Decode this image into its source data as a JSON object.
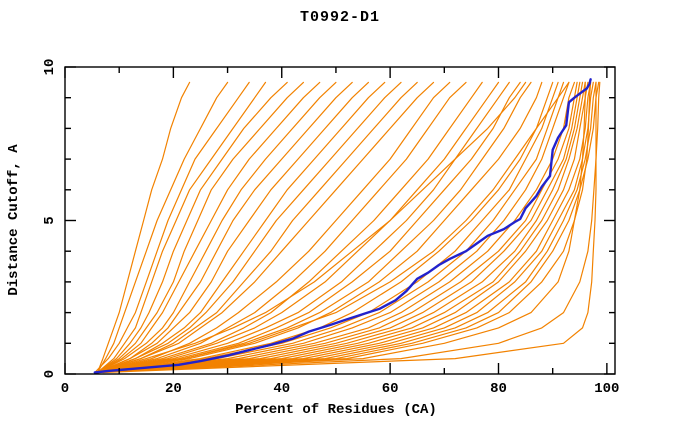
{
  "chart_data": {
    "type": "line",
    "title": "T0992-D1",
    "xlabel": "Percent of Residues (CA)",
    "ylabel": "Distance Cutoff, A",
    "xlim": [
      0,
      101.5
    ],
    "ylim": [
      0,
      10
    ],
    "grid": false,
    "legend": "none",
    "x_major_ticks": [
      0,
      20,
      40,
      60,
      80,
      100
    ],
    "x_major_tick_labels": [
      "0",
      "20",
      "40",
      "60",
      "80",
      "100"
    ],
    "x_minor_ticks": [
      10,
      30,
      50,
      70,
      90
    ],
    "y_major_ticks": [
      0,
      5,
      10
    ],
    "y_major_tick_labels": [
      "0",
      "5",
      "10"
    ],
    "y_minor_ticks": [
      1,
      2,
      3,
      4,
      6,
      7,
      8,
      9
    ],
    "colors": {
      "model": "#f28200",
      "highlight": "#2222cc",
      "axis": "#000000",
      "background": "#ffffff"
    },
    "cutoff_levels": [
      0.05,
      0.5,
      1,
      1.5,
      2,
      3,
      4,
      5,
      6,
      7,
      8,
      9,
      9.5
    ],
    "series": [
      {
        "name": "highlighted-model",
        "role": "highlight",
        "color": "#2222cc",
        "width": 2.4,
        "points": [
          [
            5.5,
            0.05
          ],
          [
            8,
            0.1
          ],
          [
            12,
            0.16
          ],
          [
            16,
            0.22
          ],
          [
            21,
            0.3
          ],
          [
            25,
            0.42
          ],
          [
            30,
            0.6
          ],
          [
            34,
            0.78
          ],
          [
            38,
            0.95
          ],
          [
            42,
            1.15
          ],
          [
            45,
            1.38
          ],
          [
            49,
            1.6
          ],
          [
            52,
            1.78
          ],
          [
            55,
            1.95
          ],
          [
            58,
            2.12
          ],
          [
            61,
            2.4
          ],
          [
            63,
            2.7
          ],
          [
            65,
            3.1
          ],
          [
            67,
            3.3
          ],
          [
            69,
            3.55
          ],
          [
            71,
            3.75
          ],
          [
            74,
            4.0
          ],
          [
            76,
            4.25
          ],
          [
            78,
            4.5
          ],
          [
            81,
            4.72
          ],
          [
            83,
            4.95
          ],
          [
            84,
            5.05
          ],
          [
            85,
            5.4
          ],
          [
            87,
            5.8
          ],
          [
            88,
            6.1
          ],
          [
            89.5,
            6.45
          ],
          [
            90,
            7.3
          ],
          [
            91,
            7.7
          ],
          [
            92.5,
            8.1
          ],
          [
            93,
            8.85
          ],
          [
            94,
            9.0
          ],
          [
            95.5,
            9.2
          ],
          [
            96.3,
            9.3
          ],
          [
            96.8,
            9.45
          ],
          [
            97,
            9.6
          ]
        ]
      },
      {
        "name": "model-01",
        "role": "model",
        "color": "#f28200",
        "width": 1.2,
        "percent_at_cutoff": [
          6,
          7,
          8,
          9,
          10,
          11.5,
          13,
          14.5,
          16,
          18,
          19.5,
          21.5,
          23
        ]
      },
      {
        "name": "model-02",
        "role": "model",
        "color": "#f28200",
        "width": 1.2,
        "percent_at_cutoff": [
          6,
          7.5,
          9,
          10,
          11,
          13,
          15,
          17,
          19.5,
          22,
          25,
          28,
          30
        ]
      },
      {
        "name": "model-03",
        "role": "model",
        "color": "#f28200",
        "width": 1.2,
        "percent_at_cutoff": [
          5.5,
          8,
          10,
          11.5,
          13,
          15,
          17,
          19,
          21.5,
          24,
          28,
          32,
          34
        ]
      },
      {
        "name": "model-04",
        "role": "model",
        "color": "#f28200",
        "width": 1.2,
        "percent_at_cutoff": [
          6,
          9,
          11,
          13,
          14,
          16,
          18,
          20.5,
          23,
          27,
          31,
          35,
          37
        ]
      },
      {
        "name": "model-05",
        "role": "model",
        "color": "#f28200",
        "width": 1.2,
        "percent_at_cutoff": [
          6,
          9.5,
          12,
          14,
          15.5,
          18,
          20,
          22.5,
          25,
          29,
          33,
          38,
          41
        ]
      },
      {
        "name": "model-06",
        "role": "model",
        "color": "#f28200",
        "width": 1.2,
        "percent_at_cutoff": [
          6,
          10,
          13,
          15,
          17,
          20,
          22,
          24.5,
          27,
          31,
          36,
          41,
          44
        ]
      },
      {
        "name": "model-07",
        "role": "model",
        "color": "#f28200",
        "width": 1.2,
        "percent_at_cutoff": [
          6,
          10.5,
          14,
          16,
          18,
          21,
          24,
          27,
          30,
          34,
          39,
          44,
          47
        ]
      },
      {
        "name": "model-08",
        "role": "model",
        "color": "#f28200",
        "width": 1.2,
        "percent_at_cutoff": [
          6,
          11,
          15,
          18,
          20,
          23,
          26,
          29,
          32.5,
          37,
          42,
          47,
          50
        ]
      },
      {
        "name": "model-09",
        "role": "model",
        "color": "#f28200",
        "width": 1.2,
        "percent_at_cutoff": [
          6,
          12,
          16,
          19,
          21,
          25,
          28,
          31,
          35,
          40,
          45,
          50,
          53
        ]
      },
      {
        "name": "model-10",
        "role": "model",
        "color": "#f28200",
        "width": 1.2,
        "percent_at_cutoff": [
          6,
          12,
          17,
          20,
          23,
          27,
          30,
          34,
          38,
          43,
          48,
          53,
          56
        ]
      },
      {
        "name": "model-11",
        "role": "model",
        "color": "#f28200",
        "width": 1.2,
        "percent_at_cutoff": [
          6,
          13,
          18,
          22,
          25,
          29,
          33,
          37,
          41,
          46,
          51,
          56,
          59
        ]
      },
      {
        "name": "model-12",
        "role": "model",
        "color": "#f28200",
        "width": 1.2,
        "percent_at_cutoff": [
          6,
          13,
          19,
          23,
          26,
          31,
          35,
          39,
          44,
          49,
          54,
          59,
          62
        ]
      },
      {
        "name": "model-13",
        "role": "model",
        "color": "#f28200",
        "width": 1.2,
        "percent_at_cutoff": [
          6,
          14,
          20,
          24,
          28,
          33,
          38,
          42,
          47,
          52,
          57,
          62,
          65
        ]
      },
      {
        "name": "model-14",
        "role": "model",
        "color": "#f28200",
        "width": 1.2,
        "percent_at_cutoff": [
          6,
          14,
          21,
          25,
          29,
          35,
          40,
          45,
          50,
          55,
          60,
          65,
          68
        ]
      },
      {
        "name": "model-15",
        "role": "model",
        "color": "#f28200",
        "width": 1.2,
        "percent_at_cutoff": [
          6,
          16,
          23,
          28,
          32,
          39,
          45,
          50,
          55,
          60,
          64,
          68,
          71
        ]
      },
      {
        "name": "model-16",
        "role": "model",
        "color": "#f28200",
        "width": 1.2,
        "percent_at_cutoff": [
          6,
          17,
          25,
          30,
          35,
          42,
          48,
          53,
          58,
          63,
          67,
          71,
          74
        ]
      },
      {
        "name": "model-17",
        "role": "model",
        "color": "#f28200",
        "width": 1.2,
        "percent_at_cutoff": [
          6,
          18,
          27,
          33,
          38,
          45,
          51,
          57,
          62,
          67,
          71,
          75,
          77
        ]
      },
      {
        "name": "model-18",
        "role": "model",
        "color": "#f28200",
        "width": 1.2,
        "percent_at_cutoff": [
          6,
          19,
          28,
          35,
          40,
          48,
          54,
          60,
          65,
          70,
          74,
          78,
          80
        ]
      },
      {
        "name": "model-19",
        "role": "model",
        "color": "#f28200",
        "width": 1.2,
        "percent_at_cutoff": [
          6,
          20,
          30,
          37,
          43,
          51,
          57,
          63,
          68,
          72,
          76,
          80,
          82
        ]
      },
      {
        "name": "model-20",
        "role": "model",
        "color": "#f28200",
        "width": 1.2,
        "percent_at_cutoff": [
          6,
          21,
          32,
          39,
          45,
          53,
          60,
          65,
          70,
          75,
          79,
          82,
          84
        ]
      },
      {
        "name": "model-21",
        "role": "model",
        "color": "#f28200",
        "width": 1.2,
        "percent_at_cutoff": [
          6,
          22,
          33,
          41,
          47,
          56,
          62,
          68,
          73,
          77,
          81,
          84,
          86
        ]
      },
      {
        "name": "model-22",
        "role": "model",
        "color": "#f28200",
        "width": 1.2,
        "percent_at_cutoff": [
          6,
          23,
          35,
          43,
          49,
          58,
          65,
          70,
          75,
          80,
          84,
          87,
          88
        ]
      },
      {
        "name": "model-23",
        "role": "model",
        "color": "#f28200",
        "width": 1.2,
        "percent_at_cutoff": [
          6,
          25,
          38,
          47,
          53,
          62,
          69,
          75,
          80,
          84,
          87,
          89,
          90
        ]
      },
      {
        "name": "model-24",
        "role": "model",
        "color": "#f28200",
        "width": 1.2,
        "percent_at_cutoff": [
          6,
          26,
          40,
          49,
          56,
          65,
          72,
          77,
          82,
          85,
          88,
          90,
          91
        ]
      },
      {
        "name": "model-25",
        "role": "model",
        "color": "#f28200",
        "width": 1.2,
        "percent_at_cutoff": [
          6,
          28,
          42,
          51,
          58,
          67,
          74,
          79,
          83,
          87,
          89,
          91,
          92
        ]
      },
      {
        "name": "model-26",
        "role": "model",
        "color": "#f28200",
        "width": 1.2,
        "percent_at_cutoff": [
          6,
          30,
          44,
          53,
          60,
          69,
          76,
          81,
          85,
          88,
          90,
          92,
          93
        ]
      },
      {
        "name": "model-27",
        "role": "model",
        "color": "#f28200",
        "width": 1.2,
        "percent_at_cutoff": [
          6,
          32,
          46,
          56,
          62,
          71,
          78,
          83,
          87,
          90,
          92,
          93,
          94
        ]
      },
      {
        "name": "model-28",
        "role": "model",
        "color": "#f28200",
        "width": 1.2,
        "percent_at_cutoff": [
          6,
          34,
          48,
          58,
          64,
          73,
          80,
          85,
          88,
          91,
          93,
          94,
          94.5
        ]
      },
      {
        "name": "model-29",
        "role": "model",
        "color": "#f28200",
        "width": 1.2,
        "percent_at_cutoff": [
          6,
          36,
          50,
          60,
          66,
          75,
          81,
          86,
          89,
          92,
          93.5,
          94.5,
          95
        ]
      },
      {
        "name": "model-30",
        "role": "model",
        "color": "#f28200",
        "width": 1.2,
        "percent_at_cutoff": [
          6,
          38,
          52,
          62,
          68,
          77,
          83,
          87,
          90,
          92.5,
          94,
          95,
          95.5
        ]
      },
      {
        "name": "model-31",
        "role": "model",
        "color": "#f28200",
        "width": 1.2,
        "percent_at_cutoff": [
          6,
          40,
          54,
          64,
          70,
          79,
          84,
          88,
          91,
          93,
          94.5,
          95.5,
          96
        ]
      },
      {
        "name": "model-32",
        "role": "model",
        "color": "#f28200",
        "width": 1.2,
        "percent_at_cutoff": [
          6,
          42,
          56,
          66,
          72,
          80,
          85,
          89,
          92,
          94,
          95,
          96,
          96.5
        ]
      },
      {
        "name": "model-33",
        "role": "model",
        "color": "#f28200",
        "width": 1.2,
        "percent_at_cutoff": [
          6,
          44,
          58,
          68,
          74,
          82,
          87,
          90,
          93,
          95,
          96,
          96.5,
          97
        ]
      },
      {
        "name": "model-34",
        "role": "model",
        "color": "#f28200",
        "width": 1.2,
        "percent_at_cutoff": [
          6,
          46,
          60,
          70,
          76,
          83,
          88,
          91,
          94,
          95.5,
          96.5,
          97,
          97.5
        ]
      },
      {
        "name": "model-35",
        "role": "model",
        "color": "#f28200",
        "width": 1.2,
        "percent_at_cutoff": [
          6,
          48,
          62,
          72,
          78,
          85,
          89,
          92,
          94.5,
          96,
          97,
          97.5,
          98
        ]
      },
      {
        "name": "model-36",
        "role": "model",
        "color": "#f28200",
        "width": 1.2,
        "percent_at_cutoff": [
          6,
          50,
          64,
          74,
          80,
          86,
          90,
          93,
          95,
          96.5,
          97.5,
          98,
          98.5
        ]
      },
      {
        "name": "model-37",
        "role": "model",
        "color": "#f28200",
        "width": 1.2,
        "percent_at_cutoff": [
          6,
          52,
          66,
          76,
          82,
          88,
          92,
          94,
          95.5,
          96.3,
          96.6,
          96.8,
          97
        ]
      },
      {
        "name": "model-38",
        "role": "model",
        "color": "#f28200",
        "width": 1.2,
        "percent_at_cutoff": [
          6,
          55,
          70,
          80,
          86,
          91,
          93,
          94,
          95,
          95.5,
          95.8,
          96,
          96
        ]
      },
      {
        "name": "model-39",
        "role": "model",
        "color": "#f28200",
        "width": 1.2,
        "percent_at_cutoff": [
          6,
          62,
          80,
          88,
          92,
          95,
          96.5,
          97.2,
          97.6,
          98,
          98.3,
          98.5,
          98.7
        ]
      },
      {
        "name": "model-40",
        "role": "model",
        "color": "#f28200",
        "width": 1.2,
        "percent_at_cutoff": [
          7,
          72,
          92,
          95.5,
          96.5,
          97.2,
          97.5,
          97.8,
          98,
          98,
          98,
          98,
          98
        ]
      },
      {
        "name": "model-41",
        "role": "model",
        "color": "#f28200",
        "width": 1.2,
        "percent_at_cutoff": [
          6,
          22,
          34,
          42,
          50,
          60,
          68,
          74,
          79,
          83,
          87,
          91,
          93
        ]
      },
      {
        "name": "model-42",
        "role": "model",
        "color": "#f28200",
        "width": 1.2,
        "percent_at_cutoff": [
          6,
          15,
          24,
          31,
          37,
          46,
          53,
          60,
          66,
          72,
          78,
          83,
          85
        ]
      }
    ]
  }
}
